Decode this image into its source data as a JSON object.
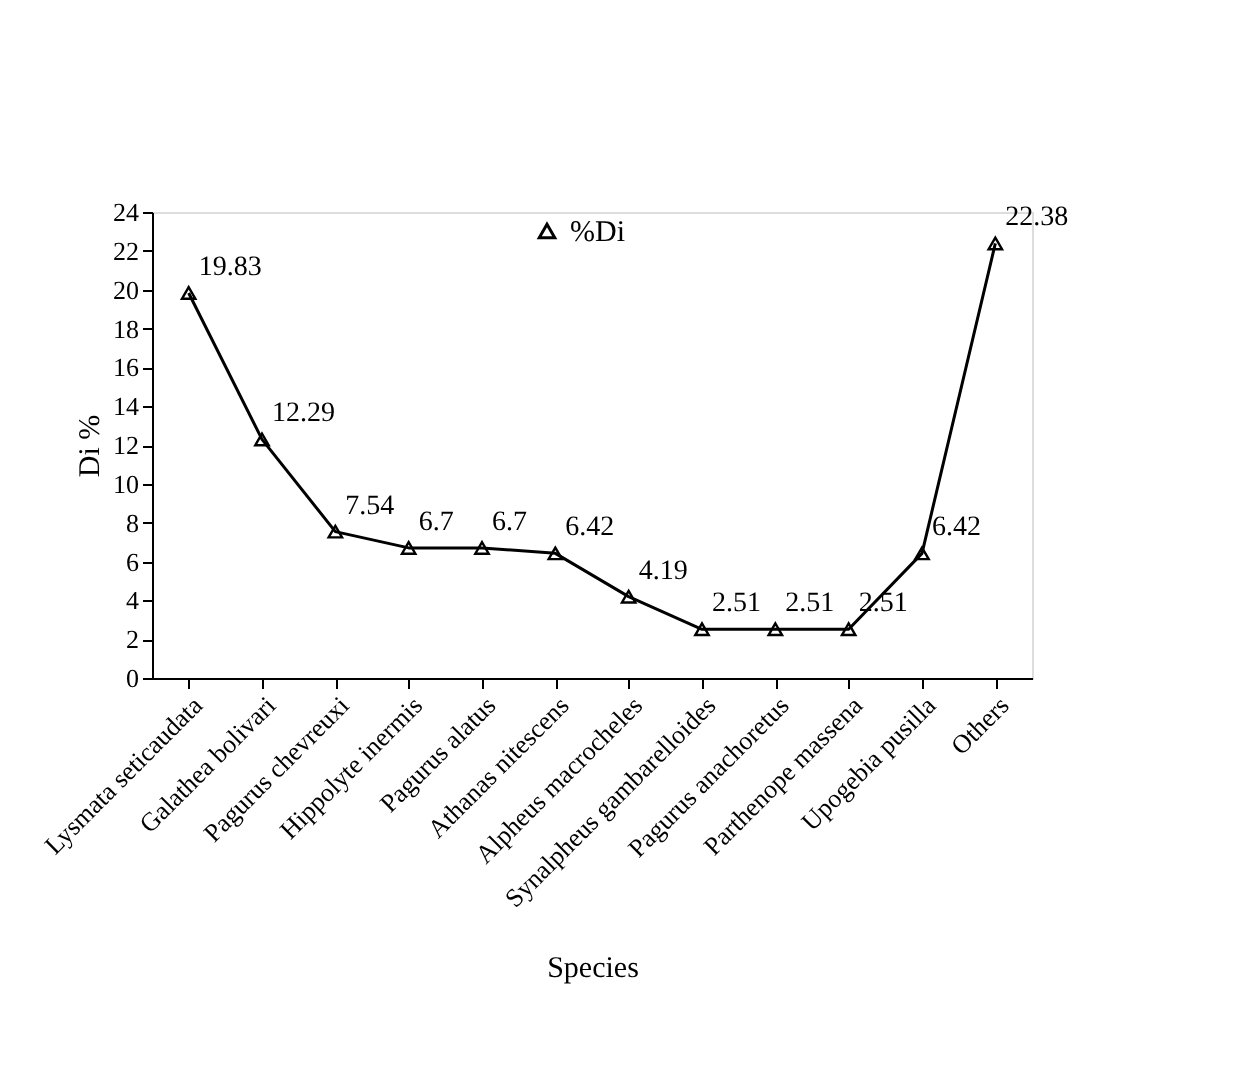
{
  "chart_data": {
    "type": "line",
    "xlabel": "Species",
    "ylabel": "Di %",
    "categories": [
      "Lysmata seticaudata",
      "Galathea bolivari",
      "Pagurus chevreuxi",
      "Hippolyte inermis",
      "Pagurus alatus",
      "Athanas nitescens",
      "Alpheus macrocheles",
      "Synalpheus gambarelloides",
      "Pagurus anachoretus",
      "Parthenope massena",
      "Upogebia pusilla",
      "Others"
    ],
    "series": [
      {
        "name": "%Di",
        "color": "#000000",
        "values": [
          19.83,
          12.29,
          7.54,
          6.7,
          6.7,
          6.42,
          4.19,
          2.51,
          2.51,
          2.51,
          6.42,
          22.38
        ]
      }
    ],
    "ylim": [
      0,
      24
    ],
    "yticks": [
      0,
      2,
      4,
      6,
      8,
      10,
      12,
      14,
      16,
      18,
      20,
      22,
      24
    ],
    "marker": "triangle",
    "line_style": "solid",
    "legend": "top",
    "data_labels": true,
    "grid": false
  }
}
